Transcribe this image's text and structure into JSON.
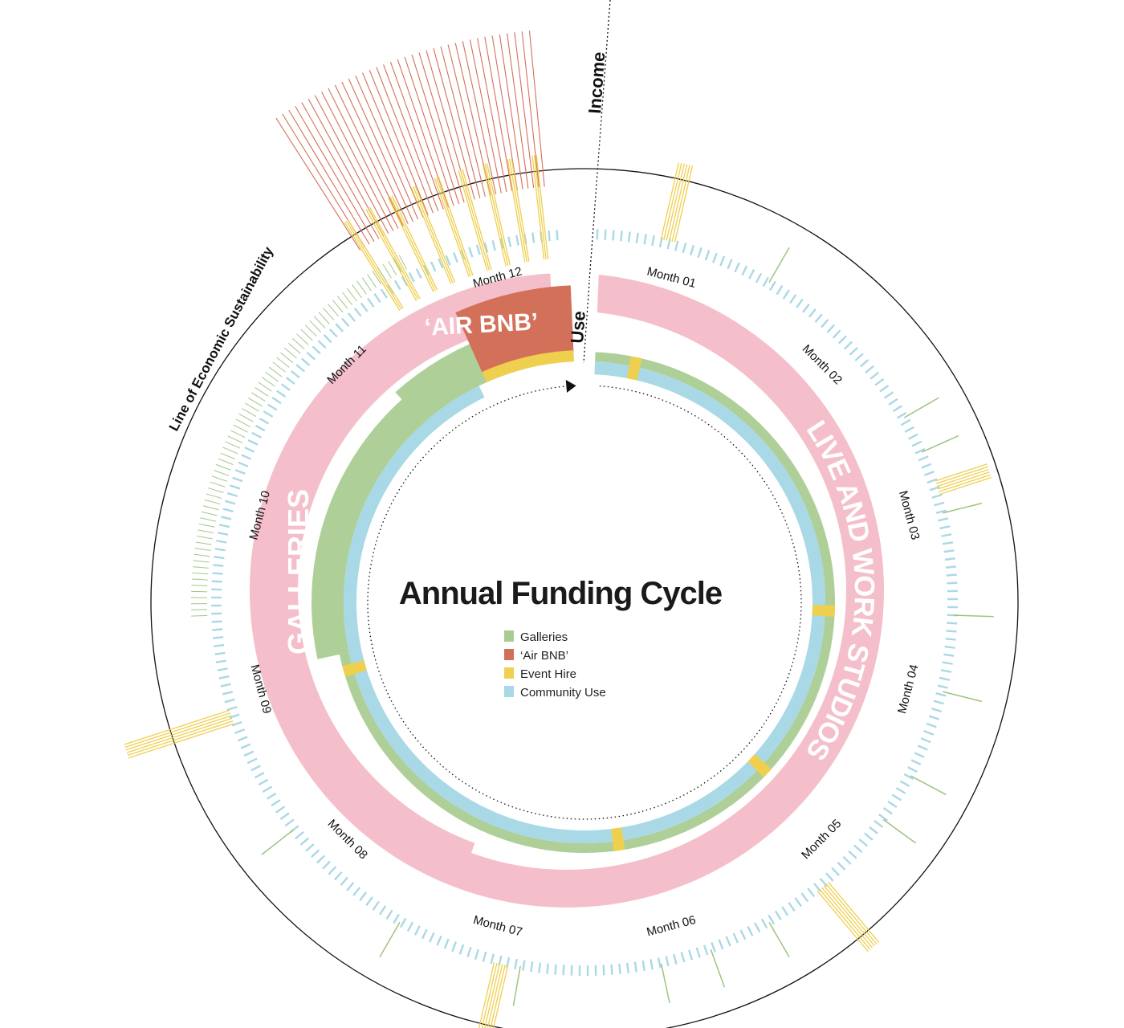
{
  "title": "Annual Funding Cycle",
  "axis_labels": {
    "income": "Income",
    "use": "Use",
    "sustainability": "Line of Economic Sustainability"
  },
  "segments": {
    "galleries": "GALLERIES",
    "airbnb": "‘AIR BNB’",
    "live_work": "LIVE AND WORK STUDIOS"
  },
  "months": [
    "Month 01",
    "Month 02",
    "Month 03",
    "Month 04",
    "Month 05",
    "Month 06",
    "Month 07",
    "Month 08",
    "Month 09",
    "Month 10",
    "Month 11",
    "Month 12"
  ],
  "legend": [
    {
      "label": "Galleries",
      "color": "#a9cc93"
    },
    {
      "label": "‘Air BNB’",
      "color": "#d0705a"
    },
    {
      "label": "Event Hire",
      "color": "#efd053"
    },
    {
      "label": "Community Use",
      "color": "#a9d8e6"
    }
  ],
  "colors": {
    "galleries": "#afcf98",
    "airbnb": "#d3705a",
    "event_hire": "#efcf4e",
    "community": "#a9d9e6",
    "live_work": "#f4bfca"
  }
}
